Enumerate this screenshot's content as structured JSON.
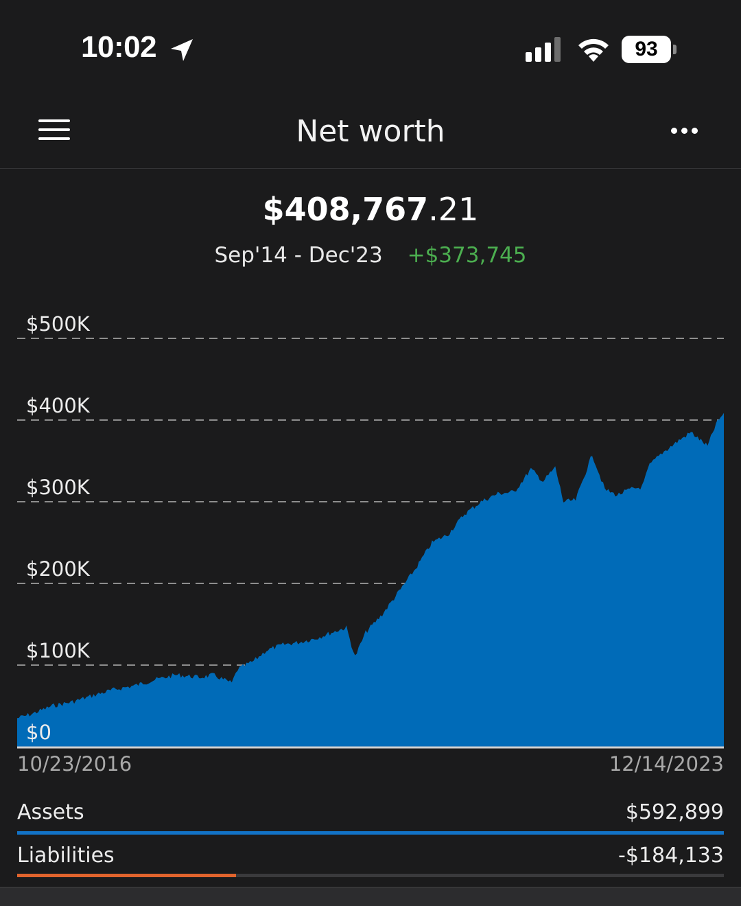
{
  "status_bar": {
    "time": "10:02",
    "battery_level": "93"
  },
  "header": {
    "title": "Net worth",
    "menu_icon": "hamburger-menu-icon",
    "more_icon": "more-options-icon"
  },
  "summary": {
    "net_worth_main": "$408,767",
    "net_worth_cents": ".21",
    "date_range": "Sep'14 - Dec'23",
    "change": "+$373,745",
    "change_color": "#4caf50"
  },
  "chart_data": {
    "type": "area",
    "title": "",
    "xlabel": "",
    "ylabel": "",
    "ylim": [
      0,
      500000
    ],
    "y_ticks": [
      "$0",
      "$100K",
      "$200K",
      "$300K",
      "$400K",
      "$500K"
    ],
    "y_tick_values": [
      0,
      100000,
      200000,
      300000,
      400000,
      500000
    ],
    "x_start_label": "10/23/2016",
    "x_end_label": "12/14/2023",
    "x_range": [
      "2016-10-23",
      "2023-12-14"
    ],
    "grid": true,
    "fill_color": "#006bb8",
    "series": [
      {
        "x": [
          "2016-10-23",
          "2016-12-15",
          "2017-03-01",
          "2017-05-15",
          "2017-08-01",
          "2017-10-15",
          "2018-01-01",
          "2018-03-15",
          "2018-06-01",
          "2018-09-01",
          "2018-10-15",
          "2018-12-24",
          "2019-01-15",
          "2019-03-15",
          "2019-05-01",
          "2019-07-01",
          "2019-09-01",
          "2019-11-01",
          "2020-01-15",
          "2020-02-20",
          "2020-03-23",
          "2020-05-01",
          "2020-07-01",
          "2020-09-01",
          "2020-11-01",
          "2021-01-01",
          "2021-03-01",
          "2021-05-01",
          "2021-07-01",
          "2021-09-01",
          "2021-11-01",
          "2022-01-01",
          "2022-02-15",
          "2022-04-01",
          "2022-05-01",
          "2022-06-15",
          "2022-08-15",
          "2022-10-01",
          "2022-11-15",
          "2023-01-01",
          "2023-02-15",
          "2023-03-15",
          "2023-05-01",
          "2023-07-01",
          "2023-08-15",
          "2023-10-15",
          "2023-11-15",
          "2023-12-14"
        ],
        "values": [
          35000,
          40000,
          50000,
          55000,
          63000,
          70000,
          75000,
          82000,
          88000,
          85000,
          88000,
          78000,
          95000,
          105000,
          118000,
          125000,
          128000,
          133000,
          142000,
          146000,
          110000,
          140000,
          162000,
          190000,
          218000,
          250000,
          260000,
          285000,
          300000,
          310000,
          312000,
          340000,
          325000,
          342000,
          300000,
          302000,
          358000,
          315000,
          308000,
          315000,
          318000,
          345000,
          360000,
          375000,
          385000,
          368000,
          395000,
          408767
        ]
      }
    ]
  },
  "breakdown": {
    "assets_label": "Assets",
    "assets_value": "$592,899",
    "assets_color": "#1273c7",
    "assets_fraction": 1.0,
    "liabilities_label": "Liabilities",
    "liabilities_value": "-$184,133",
    "liabilities_color": "#e1642d",
    "liabilities_fraction": 0.31
  }
}
